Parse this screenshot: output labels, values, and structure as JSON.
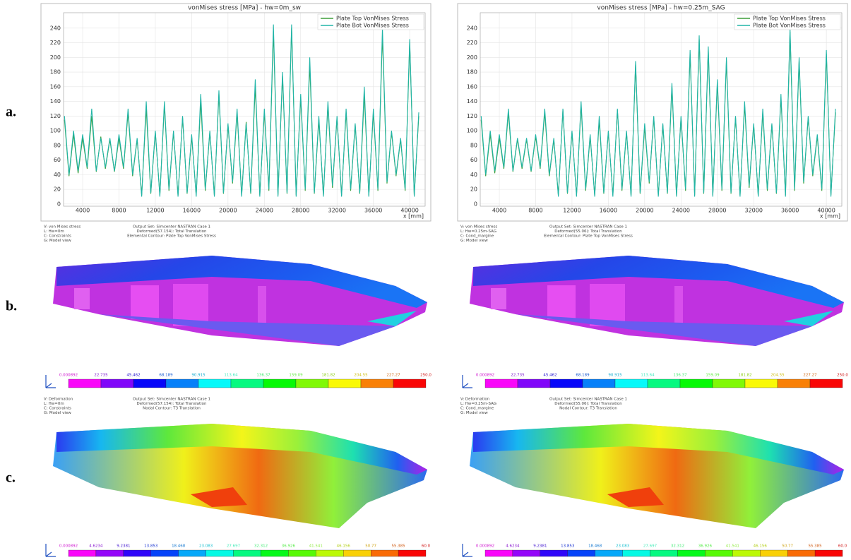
{
  "panel_labels": [
    "a.",
    "b.",
    "c."
  ],
  "chart_data": [
    {
      "type": "line",
      "title": "vonMises stress [MPa] - hw=0m_sw",
      "x_label": "x [mm]",
      "x": [
        2000,
        2500,
        3000,
        3500,
        4000,
        4500,
        5000,
        5500,
        6000,
        6500,
        7000,
        7500,
        8000,
        8500,
        9000,
        9500,
        10000,
        10500,
        11000,
        11500,
        12000,
        12500,
        13000,
        13500,
        14000,
        14500,
        15000,
        15500,
        16000,
        16500,
        17000,
        17500,
        18000,
        18500,
        19000,
        19500,
        20000,
        20500,
        21000,
        21500,
        22000,
        22500,
        23000,
        23500,
        24000,
        24500,
        25000,
        25500,
        26000,
        26500,
        27000,
        27500,
        28000,
        28500,
        29000,
        29500,
        30000,
        30500,
        31000,
        31500,
        32000,
        32500,
        33000,
        33500,
        34000,
        34500,
        35000,
        35500,
        36000,
        36500,
        37000,
        37500,
        38000,
        38500,
        39000,
        39500,
        40000,
        40500,
        41000
      ],
      "series": [
        {
          "name": "Plate Top VonMises Stress",
          "color": "#3d9e3a",
          "values": [
            115,
            38,
            95,
            42,
            90,
            48,
            120,
            44,
            92,
            48,
            88,
            44,
            90,
            48,
            125,
            38,
            88,
            12,
            130,
            14,
            98,
            12,
            135,
            18,
            98,
            12,
            118,
            14,
            92,
            12,
            140,
            18,
            98,
            12,
            150,
            14,
            108,
            28,
            125,
            12,
            112,
            14,
            160,
            12,
            125,
            18,
            235,
            12,
            175,
            14,
            240,
            12,
            145,
            18,
            190,
            14,
            115,
            12,
            135,
            22,
            118,
            12,
            125,
            18,
            108,
            14,
            150,
            12,
            125,
            18,
            230,
            28,
            98,
            38,
            88,
            18,
            220,
            12,
            120
          ]
        },
        {
          "name": "Plate Bot VonMises Stress",
          "color": "#22b5a8",
          "values": [
            120,
            40,
            100,
            45,
            95,
            50,
            130,
            45,
            90,
            50,
            90,
            45,
            95,
            50,
            130,
            40,
            90,
            10,
            140,
            15,
            100,
            10,
            140,
            20,
            100,
            10,
            120,
            15,
            95,
            10,
            150,
            20,
            100,
            10,
            155,
            15,
            110,
            30,
            130,
            10,
            110,
            15,
            170,
            10,
            130,
            20,
            245,
            10,
            180,
            15,
            245,
            10,
            150,
            20,
            200,
            15,
            120,
            10,
            140,
            25,
            120,
            10,
            130,
            20,
            110,
            15,
            160,
            10,
            130,
            20,
            240,
            30,
            100,
            40,
            90,
            20,
            225,
            10,
            125
          ]
        }
      ],
      "xlim": [
        1900,
        41700
      ],
      "xticks": [
        4000,
        8000,
        12000,
        16000,
        20000,
        24000,
        28000,
        32000,
        36000,
        40000
      ],
      "ylim": [
        -3,
        261
      ],
      "yticks": [
        0,
        20,
        40,
        60,
        80,
        100,
        120,
        140,
        160,
        180,
        200,
        220,
        240
      ],
      "grid": true,
      "legend": "upper right"
    },
    {
      "type": "line",
      "title": "vonMises stress [MPa] - hw=0.25m_SAG",
      "x_label": "x [mm]",
      "x": [
        2000,
        2500,
        3000,
        3500,
        4000,
        4500,
        5000,
        5500,
        6000,
        6500,
        7000,
        7500,
        8000,
        8500,
        9000,
        9500,
        10000,
        10500,
        11000,
        11500,
        12000,
        12500,
        13000,
        13500,
        14000,
        14500,
        15000,
        15500,
        16000,
        16500,
        17000,
        17500,
        18000,
        18500,
        19000,
        19500,
        20000,
        20500,
        21000,
        21500,
        22000,
        22500,
        23000,
        23500,
        24000,
        24500,
        25000,
        25500,
        26000,
        26500,
        27000,
        27500,
        28000,
        28500,
        29000,
        29500,
        30000,
        30500,
        31000,
        31500,
        32000,
        32500,
        33000,
        33500,
        34000,
        34500,
        35000,
        35500,
        36000,
        36500,
        37000,
        37500,
        38000,
        38500,
        39000,
        39500,
        40000,
        40500,
        41000
      ],
      "series": [
        {
          "name": "Plate Top VonMises Stress",
          "color": "#3d9e3a",
          "values": [
            115,
            38,
            95,
            42,
            90,
            48,
            125,
            44,
            88,
            48,
            88,
            44,
            92,
            48,
            125,
            38,
            88,
            12,
            128,
            14,
            98,
            12,
            135,
            18,
            92,
            12,
            115,
            14,
            98,
            12,
            128,
            18,
            98,
            12,
            190,
            14,
            105,
            28,
            118,
            12,
            108,
            14,
            160,
            12,
            118,
            18,
            205,
            12,
            225,
            14,
            210,
            12,
            165,
            18,
            195,
            14,
            118,
            12,
            135,
            22,
            108,
            12,
            125,
            18,
            108,
            14,
            145,
            12,
            235,
            18,
            195,
            28,
            118,
            38,
            92,
            18,
            205,
            12,
            125
          ]
        },
        {
          "name": "Plate Bot VonMises Stress",
          "color": "#22b5a8",
          "values": [
            120,
            40,
            100,
            45,
            95,
            50,
            130,
            45,
            90,
            50,
            90,
            45,
            95,
            50,
            130,
            40,
            90,
            10,
            130,
            15,
            100,
            10,
            140,
            20,
            95,
            10,
            120,
            15,
            100,
            10,
            130,
            20,
            100,
            10,
            195,
            15,
            110,
            30,
            120,
            10,
            110,
            15,
            165,
            10,
            120,
            20,
            210,
            10,
            230,
            15,
            215,
            10,
            170,
            20,
            200,
            15,
            120,
            10,
            140,
            25,
            110,
            10,
            130,
            20,
            110,
            15,
            150,
            10,
            240,
            20,
            200,
            30,
            120,
            40,
            95,
            20,
            210,
            10,
            130
          ]
        }
      ],
      "xlim": [
        1900,
        41700
      ],
      "xticks": [
        4000,
        8000,
        12000,
        16000,
        20000,
        24000,
        28000,
        32000,
        36000,
        40000
      ],
      "ylim": [
        -3,
        261
      ],
      "yticks": [
        0,
        20,
        40,
        60,
        80,
        100,
        120,
        140,
        160,
        180,
        200,
        220,
        240
      ],
      "grid": true,
      "legend": "upper right"
    }
  ],
  "views": [
    {
      "stress_info": {
        "left": [
          "V: von Mises stress",
          "L: Hw=0m",
          "C: Constraints",
          "G: Model view"
        ],
        "center": [
          "Output Set: Simcenter NASTRAN Case 1",
          "Deformed(57.154): Total Translation",
          "Elemental Contour: Plate Top VonMises Stress"
        ]
      },
      "stress_scale": [
        "0.000892",
        "22.735",
        "45.462",
        "68.189",
        "90.915",
        "113.64",
        "136.37",
        "159.09",
        "181.82",
        "204.55",
        "227.27",
        "250.0"
      ],
      "deform_info": {
        "left": [
          "V: Deformation",
          "L: Hw=0m",
          "C: Constraints",
          "G: Model view"
        ],
        "center": [
          "Output Set: Simcenter NASTRAN Case 1",
          "Deformed(57.154): Total Translation",
          "Nodal Contour: T3 Translation"
        ]
      },
      "deform_scale": [
        "0.000892",
        "4.6234",
        "9.2381",
        "13.853",
        "18.468",
        "23.083",
        "27.697",
        "32.312",
        "36.926",
        "41.541",
        "46.156",
        "50.77",
        "55.385",
        "60.0"
      ]
    },
    {
      "stress_info": {
        "left": [
          "V: von Mises stress",
          "L: Hw=0.25m-SAG",
          "C: Cond_margine",
          "G: Model view"
        ],
        "center": [
          "Output Set: Simcenter NASTRAN Case 1",
          "Deformed(55.06): Total Translation",
          "Elemental Contour: Plate Top VonMises Stress"
        ]
      },
      "stress_scale": [
        "0.000892",
        "22.735",
        "45.462",
        "68.189",
        "90.915",
        "113.64",
        "136.37",
        "159.09",
        "181.82",
        "204.55",
        "227.27",
        "250.0"
      ],
      "deform_info": {
        "left": [
          "V: Deformation",
          "L: Hw=0.25m-SAG",
          "C: Cond_margine",
          "G: Model view"
        ],
        "center": [
          "Output Set: Simcenter NASTRAN Case 1",
          "Deformed(55.06): Total Translation",
          "Nodal Contour: T3 Translation"
        ]
      },
      "deform_scale": [
        "0.000892",
        "4.6234",
        "9.2381",
        "13.853",
        "18.468",
        "23.083",
        "27.697",
        "32.312",
        "36.926",
        "41.541",
        "46.156",
        "50.77",
        "55.385",
        "60.0"
      ]
    }
  ]
}
